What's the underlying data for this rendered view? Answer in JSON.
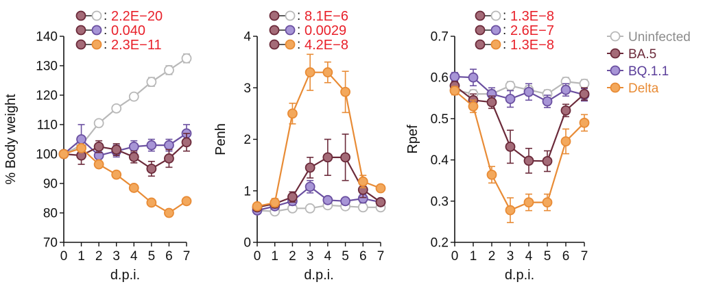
{
  "series_styles": {
    "Uninfected": {
      "stroke": "#b8b8b8",
      "fill": "#ffffff",
      "text": "#8c8c8c"
    },
    "BA.5": {
      "stroke": "#6b2a3a",
      "fill": "#a46b78",
      "text": "#6b2a3a"
    },
    "BQ.1.1": {
      "stroke": "#6a4fa0",
      "fill": "#a795d6",
      "text": "#5a3d99"
    },
    "Delta": {
      "stroke": "#e88b35",
      "fill": "#f3a85c",
      "text": "#e88b35"
    }
  },
  "legend": {
    "entries": [
      "Uninfected",
      "BA.5",
      "BQ.1.1",
      "Delta"
    ]
  },
  "colors": {
    "pvalue_text": "#e8202a",
    "axis": "#111111"
  },
  "chart_data": [
    {
      "type": "line",
      "ylabel": "% Body weight",
      "xlabel": "d.p.i.",
      "x": [
        0,
        1,
        2,
        3,
        4,
        5,
        6,
        7
      ],
      "ylim": [
        70,
        140
      ],
      "yticks": [
        70,
        80,
        90,
        100,
        110,
        120,
        130,
        140
      ],
      "ytick_labels": [
        "70",
        "80",
        "90",
        "100",
        "110",
        "120",
        "130",
        "140"
      ],
      "xtick_labels": [
        "0",
        "1",
        "2",
        "3",
        "4",
        "5",
        "6",
        "7"
      ],
      "comparisons": [
        {
          "a": "BA.5",
          "b": "Uninfected",
          "p": "2.2E−20"
        },
        {
          "a": "BA.5",
          "b": "BQ.1.1",
          "p": "0.040"
        },
        {
          "a": "BA.5",
          "b": "Delta",
          "p": "2.3E−11"
        }
      ],
      "series": [
        {
          "name": "Uninfected",
          "values": [
            100,
            103,
            110.5,
            115.5,
            119.5,
            124.5,
            128.5,
            132.5
          ],
          "err": [
            0,
            1,
            1,
            1,
            1,
            1.5,
            1.5,
            1.5
          ]
        },
        {
          "name": "BA.5",
          "values": [
            100,
            99.5,
            102.5,
            101.5,
            99,
            95,
            98.5,
            104
          ],
          "err": [
            0,
            3,
            2,
            2,
            2,
            2.5,
            3,
            3
          ]
        },
        {
          "name": "BQ.1.1",
          "values": [
            100,
            105,
            99.5,
            101,
            102.5,
            103,
            103,
            107
          ],
          "err": [
            0,
            5,
            2,
            2,
            2,
            2,
            2,
            3
          ]
        },
        {
          "name": "Delta",
          "values": [
            100,
            102,
            96.5,
            93,
            88.5,
            83.5,
            80,
            84
          ],
          "err": [
            0,
            1,
            1,
            1,
            1,
            1,
            1,
            1
          ]
        }
      ]
    },
    {
      "type": "line",
      "ylabel": "Penh",
      "xlabel": "d.p.i.",
      "x": [
        0,
        1,
        2,
        3,
        4,
        5,
        6,
        7
      ],
      "ylim": [
        0,
        4
      ],
      "yticks": [
        0,
        1,
        2,
        3,
        4
      ],
      "ytick_labels": [
        "0",
        "1",
        "2",
        "3",
        "4"
      ],
      "xtick_labels": [
        "0",
        "1",
        "2",
        "3",
        "4",
        "5",
        "6",
        "7"
      ],
      "comparisons": [
        {
          "a": "BA.5",
          "b": "Uninfected",
          "p": "8.1E−6"
        },
        {
          "a": "BA.5",
          "b": "BQ.1.1",
          "p": "0.0029"
        },
        {
          "a": "BA.5",
          "b": "Delta",
          "p": "4.2E−8"
        }
      ],
      "series": [
        {
          "name": "Uninfected",
          "values": [
            0.62,
            0.6,
            0.66,
            0.66,
            0.72,
            0.7,
            0.68,
            0.68
          ],
          "err": [
            0.03,
            0.03,
            0.03,
            0.03,
            0.03,
            0.03,
            0.03,
            0.03
          ]
        },
        {
          "name": "BA.5",
          "values": [
            0.68,
            0.75,
            0.88,
            1.45,
            1.65,
            1.65,
            1.02,
            0.78
          ],
          "err": [
            0.05,
            0.08,
            0.1,
            0.2,
            0.35,
            0.45,
            0.15,
            0.05
          ]
        },
        {
          "name": "BQ.1.1",
          "values": [
            0.62,
            0.7,
            0.8,
            1.08,
            0.82,
            0.8,
            0.85,
            0.78
          ],
          "err": [
            0.05,
            0.05,
            0.08,
            0.12,
            0.06,
            0.06,
            0.08,
            0.05
          ]
        },
        {
          "name": "Delta",
          "values": [
            0.7,
            0.77,
            2.5,
            3.3,
            3.3,
            2.92,
            1.18,
            1.05
          ],
          "err": [
            0.05,
            0.08,
            0.2,
            0.35,
            0.2,
            0.4,
            0.12,
            0.05
          ]
        }
      ]
    },
    {
      "type": "line",
      "ylabel": "Rpef",
      "xlabel": "d.p.i.",
      "x": [
        0,
        1,
        2,
        3,
        4,
        5,
        6,
        7
      ],
      "ylim": [
        0.2,
        0.7
      ],
      "yticks": [
        0.2,
        0.3,
        0.4,
        0.5,
        0.6,
        0.7
      ],
      "ytick_labels": [
        "0.2",
        "0.3",
        "0.4",
        "0.5",
        "0.6",
        "0.7"
      ],
      "xtick_labels": [
        "0",
        "1",
        "2",
        "3",
        "4",
        "5",
        "6",
        "7"
      ],
      "comparisons": [
        {
          "a": "BA.5",
          "b": "Uninfected",
          "p": "1.3E−8"
        },
        {
          "a": "BA.5",
          "b": "BQ.1.1",
          "p": "2.6E−7"
        },
        {
          "a": "BA.5",
          "b": "Delta",
          "p": "1.3E−8"
        }
      ],
      "series": [
        {
          "name": "Uninfected",
          "values": [
            0.57,
            0.56,
            0.56,
            0.58,
            0.57,
            0.56,
            0.59,
            0.585
          ],
          "err": [
            0.01,
            0.01,
            0.01,
            0.01,
            0.01,
            0.01,
            0.01,
            0.01
          ]
        },
        {
          "name": "BA.5",
          "values": [
            0.58,
            0.545,
            0.54,
            0.432,
            0.398,
            0.397,
            0.52,
            0.56
          ],
          "err": [
            0.01,
            0.015,
            0.015,
            0.04,
            0.03,
            0.025,
            0.015,
            0.015
          ]
        },
        {
          "name": "BQ.1.1",
          "values": [
            0.602,
            0.6,
            0.56,
            0.548,
            0.565,
            0.542,
            0.57,
            0.558
          ],
          "err": [
            0.01,
            0.02,
            0.015,
            0.02,
            0.02,
            0.015,
            0.015,
            0.015
          ]
        },
        {
          "name": "Delta",
          "values": [
            0.568,
            0.53,
            0.364,
            0.278,
            0.297,
            0.297,
            0.445,
            0.49
          ],
          "err": [
            0.01,
            0.015,
            0.02,
            0.03,
            0.02,
            0.02,
            0.03,
            0.02
          ]
        }
      ]
    }
  ]
}
